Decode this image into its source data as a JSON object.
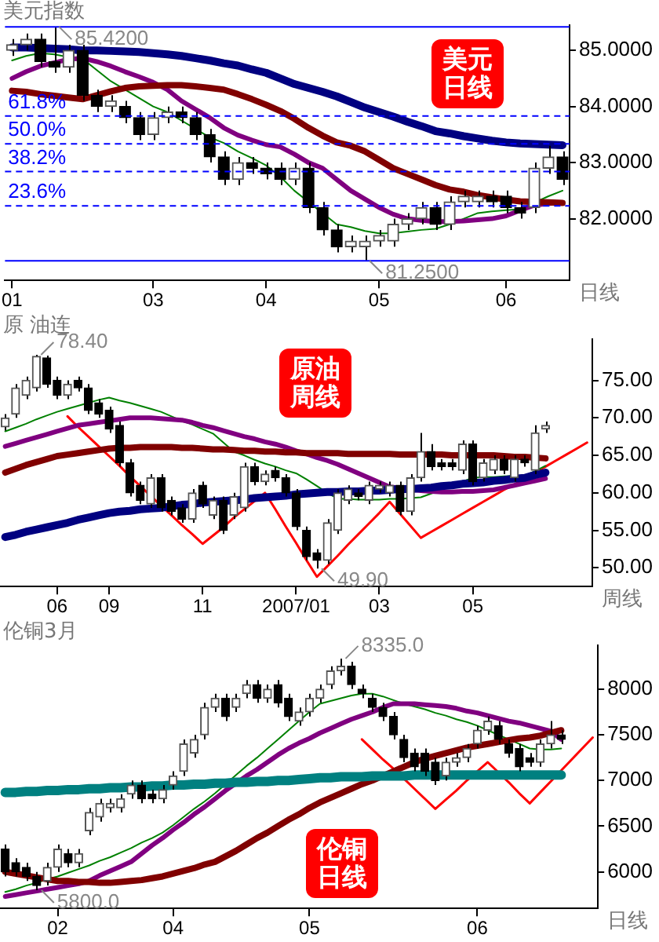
{
  "chart_data": [
    {
      "type": "candlestick",
      "title": "美元指数",
      "xlabel": "日线",
      "categories": [
        "01",
        null,
        null,
        null,
        null,
        null,
        null,
        null,
        null,
        null,
        "03",
        null,
        null,
        null,
        null,
        null,
        null,
        null,
        "04",
        null,
        null,
        null,
        null,
        null,
        null,
        null,
        "05",
        null,
        null,
        null,
        null,
        null,
        null,
        null,
        null,
        "06",
        null,
        null,
        null,
        null
      ],
      "ohlc": [
        [
          85.0,
          85.2,
          84.9,
          85.1
        ],
        [
          85.1,
          85.3,
          85.0,
          85.2
        ],
        [
          85.2,
          85.3,
          84.7,
          84.8
        ],
        [
          84.8,
          85.42,
          84.6,
          84.7
        ],
        [
          84.7,
          85.1,
          84.6,
          85.0
        ],
        [
          85.0,
          85.1,
          84.1,
          84.2
        ],
        [
          84.2,
          84.3,
          83.9,
          84.0
        ],
        [
          84.0,
          84.2,
          83.9,
          84.1
        ],
        [
          84.0,
          84.1,
          83.7,
          83.8
        ],
        [
          83.8,
          83.9,
          83.4,
          83.5
        ],
        [
          83.5,
          83.9,
          83.4,
          83.8
        ],
        [
          83.8,
          84.0,
          83.7,
          83.9
        ],
        [
          83.9,
          84.0,
          83.7,
          83.8
        ],
        [
          83.8,
          83.9,
          83.4,
          83.5
        ],
        [
          83.5,
          83.6,
          83.0,
          83.1
        ],
        [
          83.1,
          83.2,
          82.6,
          82.7
        ],
        [
          82.7,
          83.1,
          82.6,
          83.0
        ],
        [
          83.0,
          83.1,
          82.8,
          82.9
        ],
        [
          82.9,
          83.0,
          82.7,
          82.8
        ],
        [
          82.9,
          83.0,
          82.6,
          82.7
        ],
        [
          82.7,
          83.0,
          82.6,
          82.9
        ],
        [
          82.9,
          83.0,
          82.1,
          82.2
        ],
        [
          82.2,
          82.3,
          81.7,
          81.8
        ],
        [
          81.8,
          81.9,
          81.4,
          81.5
        ],
        [
          81.5,
          81.7,
          81.4,
          81.6
        ],
        [
          81.5,
          81.7,
          81.25,
          81.6
        ],
        [
          81.6,
          81.8,
          81.5,
          81.7
        ],
        [
          81.6,
          82.0,
          81.5,
          81.9
        ],
        [
          81.9,
          82.1,
          81.8,
          82.0
        ],
        [
          82.0,
          82.3,
          81.9,
          82.2
        ],
        [
          82.2,
          82.3,
          81.8,
          81.9
        ],
        [
          81.9,
          82.4,
          81.8,
          82.3
        ],
        [
          82.3,
          82.5,
          82.2,
          82.4
        ],
        [
          82.3,
          82.5,
          82.2,
          82.4
        ],
        [
          82.4,
          82.5,
          82.2,
          82.3
        ],
        [
          82.4,
          82.5,
          82.1,
          82.2
        ],
        [
          82.2,
          82.3,
          82.0,
          82.1
        ],
        [
          82.2,
          83.0,
          82.1,
          82.9
        ],
        [
          82.9,
          83.3,
          82.8,
          83.1
        ],
        [
          83.1,
          83.2,
          82.6,
          82.7
        ]
      ],
      "series": [
        {
          "type": "line",
          "color": "#000080",
          "values": [
            85.05,
            85.05,
            85.04,
            85.03,
            85.02,
            85.0,
            85.0,
            84.99,
            84.98,
            84.97,
            84.95,
            84.93,
            84.9,
            84.86,
            84.82,
            84.77,
            84.73,
            84.66,
            84.6,
            84.5,
            84.4,
            84.33,
            84.26,
            84.18,
            84.08,
            83.98,
            83.9,
            83.82,
            83.73,
            83.65,
            83.56,
            83.52,
            83.47,
            83.43,
            83.39,
            83.36,
            83.34,
            83.33,
            83.32,
            83.31
          ]
        },
        {
          "type": "line",
          "color": "#800000",
          "values": [
            84.28,
            84.26,
            84.22,
            84.19,
            84.16,
            84.13,
            84.2,
            84.27,
            84.33,
            84.36,
            84.37,
            84.38,
            84.38,
            84.36,
            84.33,
            84.3,
            84.22,
            84.13,
            84.03,
            83.92,
            83.78,
            83.62,
            83.48,
            83.36,
            83.3,
            83.2,
            83.05,
            82.9,
            82.8,
            82.7,
            82.6,
            82.52,
            82.48,
            82.42,
            82.38,
            82.34,
            82.31,
            82.3,
            82.29,
            82.28
          ]
        },
        {
          "type": "line",
          "color": "#800080",
          "values": [
            84.5,
            84.62,
            84.72,
            84.78,
            84.84,
            84.86,
            84.8,
            84.72,
            84.62,
            84.53,
            84.43,
            84.3,
            84.1,
            83.95,
            83.8,
            83.62,
            83.49,
            83.4,
            83.32,
            83.28,
            83.15,
            83.0,
            82.9,
            82.7,
            82.5,
            82.35,
            82.2,
            82.08,
            82.0,
            81.97,
            81.95,
            81.95,
            81.96,
            81.98,
            82.0,
            82.05,
            82.15,
            82.24,
            82.27,
            82.28
          ]
        },
        {
          "type": "line",
          "color": "#008000",
          "values": [
            84.82,
            84.9,
            84.95,
            84.93,
            84.88,
            84.85,
            84.65,
            84.45,
            84.3,
            84.15,
            84.0,
            83.9,
            83.75,
            83.6,
            83.45,
            83.35,
            83.2,
            83.08,
            82.95,
            82.75,
            82.5,
            82.3,
            82.1,
            81.9,
            81.85,
            81.78,
            81.74,
            81.74,
            81.77,
            81.8,
            81.82,
            81.9,
            82.0,
            82.1,
            82.13,
            82.15,
            82.17,
            null,
            82.4,
            82.5
          ]
        }
      ],
      "ylim": [
        80.9,
        85.45
      ],
      "yticks": [
        {
          "value": 82,
          "label": "82.0000"
        },
        {
          "value": 83,
          "label": "83.0000"
        },
        {
          "value": 84,
          "label": "84.0000"
        },
        {
          "value": 85,
          "label": "85.0000"
        }
      ],
      "ref_lines": [
        {
          "axis": "y",
          "value": 83.83,
          "color": "#0000ff",
          "line_style": "dashed"
        },
        {
          "axis": "y",
          "value": 83.335,
          "color": "#0000ff",
          "line_style": "dashed"
        },
        {
          "axis": "y",
          "value": 82.84,
          "color": "#0000ff",
          "line_style": "dashed"
        },
        {
          "axis": "y",
          "value": 82.23,
          "color": "#0000ff",
          "line_style": "dashed"
        },
        {
          "axis": "y",
          "value": 85.42,
          "color": "#0000ff",
          "line_style": "solid"
        },
        {
          "axis": "y",
          "value": 81.25,
          "color": "#0000ff",
          "line_style": "solid"
        }
      ],
      "annotations": [
        "美元日线",
        "85.4200",
        "81.2500",
        {
          "text": "61.8%",
          "y": 83.83
        },
        {
          "text": "50.0%",
          "y": 83.335
        },
        {
          "text": "38.2%",
          "y": 82.84
        },
        {
          "text": "23.6%",
          "y": 82.23
        }
      ]
    },
    {
      "type": "candlestick",
      "title": "原 油连",
      "xlabel": "周线",
      "categories": [
        null,
        null,
        null,
        null,
        null,
        "06",
        null,
        null,
        null,
        null,
        "09",
        null,
        null,
        null,
        null,
        null,
        null,
        null,
        null,
        "11",
        null,
        null,
        null,
        null,
        null,
        null,
        null,
        null,
        "2007/01",
        null,
        null,
        null,
        null,
        null,
        null,
        null,
        "03",
        null,
        null,
        null,
        null,
        null,
        null,
        null,
        null,
        "05",
        null,
        null,
        null,
        null,
        null,
        null,
        null,
        null,
        null,
        null,
        null
      ],
      "ohlc": [
        [
          68.8,
          70.5,
          68.3,
          70
        ],
        [
          70.5,
          74.5,
          70,
          74
        ],
        [
          73,
          75.5,
          72.5,
          75
        ],
        [
          74,
          78.4,
          73.5,
          78.2
        ],
        [
          78,
          78.3,
          74,
          74.5
        ],
        [
          75,
          75.5,
          72.5,
          73
        ],
        [
          73,
          75,
          72.5,
          74.5
        ],
        [
          75,
          75.5,
          73.5,
          74
        ],
        [
          74,
          74.5,
          70.5,
          71
        ],
        [
          72,
          72.5,
          70,
          70.5
        ],
        [
          71,
          71.5,
          68,
          68.5
        ],
        [
          69,
          69.5,
          63.5,
          64
        ],
        [
          64,
          64.5,
          59.5,
          60
        ],
        [
          61,
          61.5,
          58.5,
          59
        ],
        [
          58.5,
          62.5,
          58,
          62
        ],
        [
          62,
          62.5,
          57.5,
          58
        ],
        [
          59,
          59.5,
          57,
          57.5
        ],
        [
          58,
          58.5,
          56,
          56.5
        ],
        [
          56.5,
          60.5,
          56,
          60
        ],
        [
          61,
          61.5,
          58,
          58.5
        ],
        [
          57,
          59.5,
          56.5,
          59
        ],
        [
          59,
          59.5,
          54.5,
          55
        ],
        [
          57,
          60,
          56.5,
          59.5
        ],
        [
          58,
          64,
          57.5,
          63.5
        ],
        [
          63.5,
          64,
          61,
          61.5
        ],
        [
          61.5,
          63,
          61,
          62.5
        ],
        [
          63,
          63.5,
          61.5,
          62
        ],
        [
          62,
          62.5,
          59.5,
          60
        ],
        [
          60,
          60.5,
          55,
          55.5
        ],
        [
          55,
          55.5,
          51,
          51.5
        ],
        [
          52,
          52.5,
          49.9,
          51
        ],
        [
          51,
          56.5,
          50.5,
          56
        ],
        [
          55,
          60.5,
          54.5,
          60
        ],
        [
          59,
          61,
          58.5,
          60.5
        ],
        [
          60,
          60.5,
          59,
          59.5
        ],
        [
          59,
          61.5,
          58.5,
          61
        ],
        [
          60.5,
          61.5,
          60,
          61
        ],
        [
          60,
          61.5,
          59.5,
          61
        ],
        [
          61,
          61.5,
          57,
          57.5
        ],
        [
          57.5,
          62.5,
          57,
          62
        ],
        [
          62,
          68,
          61.5,
          65.5
        ],
        [
          65.5,
          66.5,
          63,
          63.5
        ],
        [
          64,
          64.5,
          63,
          63.5
        ],
        [
          64,
          64.5,
          63,
          63.5
        ],
        [
          63,
          67,
          62.5,
          66.5
        ],
        [
          66.5,
          67,
          61,
          61.5
        ],
        [
          62,
          64.5,
          61.5,
          64
        ],
        [
          63,
          65,
          62.5,
          64.5
        ],
        [
          64.5,
          65,
          62.5,
          63
        ],
        [
          62,
          65,
          61.5,
          64.5
        ],
        [
          64.5,
          65,
          63.5,
          64
        ],
        [
          63,
          69,
          62.5,
          68
        ],
        [
          68.5,
          69.5,
          68,
          69
        ],
        null,
        null,
        null,
        null
      ],
      "series": [
        {
          "type": "line",
          "color": "#000080",
          "values": [
            54.1,
            54.4,
            54.8,
            55.1,
            55.4,
            55.7,
            56.0,
            56.4,
            56.7,
            57.0,
            57.3,
            57.5,
            57.6,
            57.8,
            57.9,
            58.0,
            58.2,
            58.4,
            58.5,
            58.7,
            58.8,
            58.9,
            59.0,
            59.1,
            59.3,
            59.4,
            59.5,
            59.6,
            59.8,
            59.9,
            60.0,
            60.1,
            60.1,
            60.2,
            60.2,
            60.3,
            60.3,
            60.4,
            60.5,
            60.5,
            60.6,
            60.7,
            60.9,
            61.0,
            61.2,
            61.3,
            61.4,
            61.6,
            61.7,
            61.9,
            62.0,
            62.4,
            62.7,
            null,
            null,
            null,
            null
          ]
        },
        {
          "type": "line",
          "color": "#800000",
          "values": [
            62.7,
            63.2,
            63.7,
            64.1,
            64.5,
            64.9,
            65.1,
            65.3,
            65.5,
            65.7,
            65.9,
            66.0,
            66.0,
            66.1,
            66.1,
            66.1,
            66.1,
            66.0,
            66.0,
            65.9,
            65.8,
            65.8,
            65.7,
            65.6,
            65.6,
            65.5,
            65.5,
            65.4,
            65.4,
            65.3,
            65.3,
            65.3,
            65.3,
            65.2,
            65.2,
            65.2,
            65.2,
            65.2,
            65.1,
            65.1,
            65.1,
            65.1,
            65.1,
            65.0,
            65.0,
            65.0,
            65.0,
            65.0,
            64.9,
            64.8,
            64.8,
            64.7,
            64.6,
            null,
            null,
            null,
            null
          ]
        },
        {
          "type": "line",
          "color": "#800080",
          "values": [
            66.2,
            66.6,
            67.0,
            67.4,
            67.8,
            68.2,
            68.6,
            69.0,
            69.2,
            69.4,
            69.6,
            69.8,
            70.0,
            70.0,
            70.0,
            69.9,
            69.8,
            69.7,
            69.4,
            69.0,
            68.7,
            68.3,
            67.9,
            67.5,
            67.2,
            66.8,
            66.5,
            66.1,
            65.6,
            65.2,
            64.7,
            64.3,
            63.8,
            63.2,
            62.6,
            62.0,
            61.4,
            60.8,
            null,
            null,
            60.3,
            60.2,
            60.1,
            60.1,
            60.2,
            60.2,
            60.3,
            60.4,
            60.7,
            61.0,
            61.3,
            61.6,
            61.9,
            null,
            null,
            null,
            null
          ]
        },
        {
          "type": "line",
          "color": "#008000",
          "values": [
            68.2,
            68.7,
            69.2,
            69.8,
            70.3,
            70.8,
            71.2,
            71.6,
            72.0,
            72.4,
            72.7,
            72.3,
            72.0,
            71.6,
            71.2,
            70.8,
            70.2,
            69.6,
            69.1,
            68.5,
            67.9,
            66.7,
            65.5,
            65.0,
            64.4,
            63.9,
            63.5,
            63.0,
            62.6,
            61.8,
            60.9,
            60.0,
            59.2,
            59.2,
            59.1,
            59.1,
            59.1,
            59.2,
            59.2,
            59.3,
            59.4,
            59.9,
            null,
            null,
            61.5,
            62.0,
            62.1,
            62.1,
            62.2,
            null,
            62.3,
            62.9,
            63.6,
            null,
            null,
            null,
            null
          ]
        },
        {
          "type": "line",
          "color": "#ff0000",
          "values": [
            null,
            null,
            null,
            null,
            null,
            null,
            70.2,
            68.8,
            67.5,
            66.2,
            64.9,
            63.6,
            62.2,
            60.9,
            59.6,
            58.3,
            57.0,
            55.7,
            54.5,
            53.2,
            54.3,
            55.4,
            56.7,
            57.8,
            58.9,
            60.0,
            57.8,
            55.5,
            53.3,
            51.0,
            48.8,
            50.2,
            51.6,
            53.1,
            54.5,
            55.9,
            57.3,
            58.8,
            57.2,
            55.6,
            54.0,
            54.8,
            55.6,
            56.4,
            57.2,
            58.0,
            58.8,
            59.6,
            60.4,
            61.1,
            null,
            62.7,
            63.5,
            64.3,
            65.1,
            65.9,
            66.7
          ]
        }
      ],
      "ylim": [
        47.5,
        80.5
      ],
      "yticks": [
        {
          "value": 50,
          "label": "50.00"
        },
        {
          "value": 55,
          "label": "55.00"
        },
        {
          "value": 60,
          "label": "60.00"
        },
        {
          "value": 65,
          "label": "65.00"
        },
        {
          "value": 70,
          "label": "70.00"
        },
        {
          "value": 75,
          "label": "75.00"
        }
      ],
      "annotations": [
        "原油周线",
        "78.40",
        "49.90"
      ]
    },
    {
      "type": "candlestick",
      "title": "伦铜3月",
      "xlabel": "日线",
      "categories": [
        null,
        null,
        null,
        null,
        null,
        "02",
        null,
        null,
        null,
        null,
        null,
        null,
        null,
        null,
        null,
        null,
        "04",
        null,
        null,
        null,
        null,
        null,
        null,
        null,
        null,
        null,
        null,
        null,
        null,
        "05",
        null,
        null,
        null,
        null,
        null,
        null,
        null,
        null,
        null,
        null,
        null,
        null,
        null,
        null,
        null,
        "06",
        null,
        null,
        null,
        null,
        null,
        null,
        null,
        null,
        null,
        null,
        null
      ],
      "ohlc": [
        [
          6250,
          6300,
          5950,
          6000
        ],
        [
          6100,
          6150,
          5950,
          6000
        ],
        [
          6050,
          6100,
          5900,
          5950
        ],
        [
          5950,
          6000,
          5800,
          5850
        ],
        [
          5900,
          6100,
          5850,
          6050
        ],
        [
          6050,
          6300,
          6000,
          6250
        ],
        [
          6200,
          6250,
          6050,
          6100
        ],
        [
          6100,
          6250,
          6050,
          6200
        ],
        [
          6450,
          6700,
          6400,
          6650
        ],
        [
          6600,
          6800,
          6550,
          6750
        ],
        [
          6700,
          6800,
          6650,
          6750
        ],
        [
          6700,
          6850,
          6650,
          6800
        ],
        [
          6850,
          7000,
          6800,
          6950
        ],
        [
          6950,
          7000,
          6750,
          6800
        ],
        [
          6850,
          6900,
          6750,
          6800
        ],
        [
          6800,
          6950,
          6750,
          6900
        ],
        [
          6950,
          7100,
          6900,
          7050
        ],
        [
          7100,
          7450,
          7050,
          7400
        ],
        [
          7300,
          7500,
          7250,
          7450
        ],
        [
          7500,
          7850,
          7450,
          7800
        ],
        [
          7800,
          7950,
          7750,
          7900
        ],
        [
          7900,
          7950,
          7650,
          7700
        ],
        [
          7800,
          7950,
          7750,
          7900
        ],
        [
          7950,
          8100,
          7900,
          8050
        ],
        [
          8050,
          8100,
          7850,
          7900
        ],
        [
          7900,
          8050,
          7850,
          8000
        ],
        [
          8050,
          8100,
          7800,
          7850
        ],
        [
          7900,
          7950,
          7650,
          7700
        ],
        [
          7650,
          7800,
          7600,
          7750
        ],
        [
          7750,
          7950,
          7700,
          7900
        ],
        [
          7900,
          8050,
          7850,
          8000
        ],
        [
          8050,
          8250,
          8000,
          8200
        ],
        [
          8200,
          8335,
          8150,
          8250
        ],
        [
          8250,
          8300,
          8000,
          8050
        ],
        [
          8000,
          8050,
          7900,
          7950
        ],
        [
          7900,
          7950,
          7750,
          7800
        ],
        [
          7800,
          7850,
          7650,
          7700
        ],
        [
          7700,
          7750,
          7450,
          7500
        ],
        [
          7450,
          7500,
          7200,
          7250
        ],
        [
          7300,
          7350,
          7100,
          7150
        ],
        [
          7300,
          7350,
          7050,
          7100
        ],
        [
          7200,
          7250,
          6950,
          7000
        ],
        [
          7050,
          7250,
          7000,
          7200
        ],
        [
          7200,
          7300,
          7150,
          7250
        ],
        [
          7250,
          7400,
          7200,
          7350
        ],
        [
          7400,
          7600,
          7350,
          7550
        ],
        [
          7550,
          7700,
          7500,
          7650
        ],
        [
          7600,
          7650,
          7400,
          7450
        ],
        [
          7400,
          7450,
          7250,
          7300
        ],
        [
          7350,
          7400,
          7100,
          7150
        ],
        [
          7250,
          7300,
          7150,
          7200
        ],
        [
          7200,
          7450,
          7150,
          7400
        ],
        [
          7400,
          7650,
          7350,
          7500
        ],
        [
          7500,
          7550,
          7400,
          7450
        ],
        null,
        null,
        null
      ],
      "series": [
        {
          "type": "line",
          "color": "#008080",
          "values": [
            6870,
            6870,
            6880,
            6880,
            6890,
            6890,
            6900,
            6900,
            6910,
            6910,
            6920,
            6920,
            6930,
            6930,
            6940,
            6940,
            6950,
            6950,
            6960,
            6960,
            6970,
            6970,
            6980,
            6980,
            6990,
            6990,
            7000,
            7000,
            7010,
            7020,
            7030,
            7030,
            7040,
            7040,
            7040,
            7050,
            7050,
            7050,
            7050,
            7060,
            7060,
            7060,
            7060,
            7060,
            7060,
            7060,
            7060,
            7060,
            7060,
            7060,
            7060,
            7060,
            7060,
            7060,
            null,
            null,
            null
          ]
        },
        {
          "type": "line",
          "color": "#800000",
          "values": [
            6000,
            5980,
            5960,
            5940,
            5920,
            5900,
            5900,
            5890,
            5890,
            5880,
            5880,
            5890,
            5900,
            5910,
            5930,
            5950,
            5980,
            6010,
            6040,
            6080,
            6110,
            6170,
            6230,
            6300,
            6370,
            6430,
            6500,
            6570,
            6630,
            6700,
            6760,
            6810,
            6860,
            6910,
            6960,
            7000,
            7050,
            7100,
            7150,
            7200,
            7240,
            7270,
            7300,
            7330,
            7360,
            7380,
            7400,
            7420,
            7440,
            7460,
            7470,
            7490,
            7520,
            7550,
            null,
            null,
            null
          ]
        },
        {
          "type": "line",
          "color": "#800080",
          "values": [
            5730,
            5750,
            5770,
            5790,
            5810,
            5830,
            5850,
            5870,
            5900,
            5960,
            6010,
            6060,
            6110,
            6200,
            6290,
            6370,
            6460,
            6540,
            6630,
            6710,
            6800,
            6890,
            6970,
            7050,
            7120,
            7200,
            7280,
            7350,
            7410,
            7460,
            7520,
            7570,
            7620,
            7670,
            7710,
            7750,
            7800,
            7840,
            7840,
            7840,
            7830,
            7820,
            7810,
            7790,
            7760,
            7740,
            7710,
            7680,
            7650,
            7630,
            7600,
            7570,
            7540,
            7450,
            null,
            null,
            null
          ]
        },
        {
          "type": "line",
          "color": "#008000",
          "values": [
            5780,
            5810,
            5850,
            5880,
            5920,
            5950,
            5990,
            6030,
            6070,
            6120,
            6160,
            6210,
            6260,
            6320,
            6370,
            6430,
            6510,
            6600,
            6690,
            6770,
            6860,
            6960,
            7060,
            7160,
            7250,
            7350,
            7450,
            7550,
            7650,
            7750,
            7840,
            7870,
            7900,
            7930,
            7950,
            7950,
            7920,
            7880,
            7840,
            7810,
            7780,
            7740,
            7710,
            7670,
            7640,
            7600,
            7550,
            7500,
            7450,
            7400,
            7350,
            7340,
            7340,
            7350,
            null,
            null,
            null
          ]
        },
        {
          "type": "line",
          "color": "#ff0000",
          "values": [
            null,
            null,
            null,
            null,
            null,
            null,
            null,
            null,
            null,
            null,
            null,
            null,
            null,
            null,
            null,
            null,
            null,
            null,
            null,
            null,
            null,
            null,
            null,
            null,
            null,
            null,
            null,
            null,
            null,
            null,
            null,
            null,
            null,
            null,
            7450,
            7340,
            7230,
            7130,
            7020,
            6910,
            6800,
            6690,
            6790,
            6890,
            7000,
            7100,
            7200,
            7090,
            6980,
            6860,
            6750,
            6870,
            6990,
            7110,
            7230,
            7350,
            7470
          ]
        }
      ],
      "ylim": [
        5600,
        8480
      ],
      "yticks": [
        6000,
        6500,
        7000,
        7500,
        8000
      ],
      "annotations": [
        "伦铜日线",
        "8335.0",
        "5800.0"
      ]
    }
  ]
}
